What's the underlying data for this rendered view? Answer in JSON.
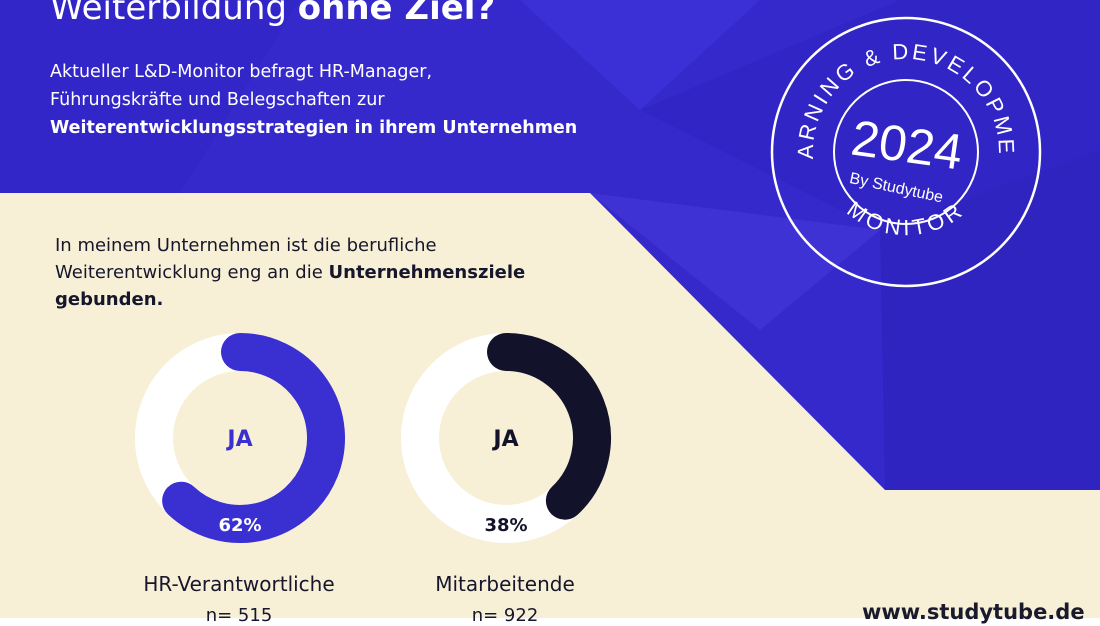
{
  "title": {
    "regular": "Weiterbildung ",
    "bold": "ohne Ziel?"
  },
  "subtitle": {
    "line1": "Aktueller L&D-Monitor befragt HR-Manager,",
    "line2": "Führungskräfte und Belegschaften zur",
    "line3_bold": "Weiterentwicklungsstrategien in ihrem Unternehmen"
  },
  "seal": {
    "arc_top": "LEARNING & DEVELOPMENT",
    "year": "2024",
    "by": "By Studytube",
    "arc_bottom": "MONITOR"
  },
  "question": {
    "line1": "In meinem Unternehmen ist die berufliche",
    "line2": "Weiterentwicklung eng an die ",
    "bold1": "Unternehmensziele",
    "bold2": "gebunden."
  },
  "results": [
    {
      "center_label": "JA",
      "percent_label": "62%",
      "share": 0.62,
      "color": "#3a2fd0",
      "group": "HR-Verantwortliche",
      "n": "n= 515"
    },
    {
      "center_label": "JA",
      "percent_label": "38%",
      "share": 0.38,
      "color": "#12122a",
      "group": "Mitarbeitende",
      "n": "n= 922"
    }
  ],
  "footer": {
    "url": "www.studytube.de"
  },
  "colors": {
    "blue": "#3a2fd0",
    "cream": "#f7f0d6",
    "dark": "#12122a",
    "white": "#ffffff"
  }
}
